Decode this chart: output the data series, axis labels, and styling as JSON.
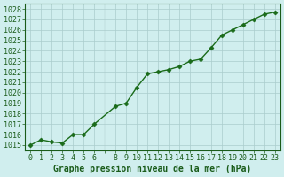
{
  "x": [
    0,
    1,
    2,
    3,
    4,
    5,
    6,
    8,
    9,
    10,
    11,
    12,
    13,
    14,
    15,
    16,
    17,
    18,
    19,
    20,
    21,
    22,
    23
  ],
  "y": [
    1015.0,
    1015.5,
    1015.3,
    1015.2,
    1016.0,
    1016.0,
    1017.0,
    1018.7,
    1019.0,
    1020.5,
    1021.8,
    1022.0,
    1022.2,
    1022.5,
    1023.0,
    1023.2,
    1024.3,
    1025.5,
    1026.0,
    1026.5,
    1027.0,
    1027.5,
    1027.7
  ],
  "ylabel_values": [
    1015,
    1016,
    1017,
    1018,
    1019,
    1020,
    1021,
    1022,
    1023,
    1024,
    1025,
    1026,
    1027,
    1028
  ],
  "xlabel_values": [
    0,
    1,
    2,
    3,
    4,
    5,
    6,
    8,
    9,
    10,
    11,
    12,
    13,
    14,
    15,
    16,
    17,
    18,
    19,
    20,
    21,
    22,
    23
  ],
  "ylim": [
    1014.5,
    1028.5
  ],
  "xlim": [
    -0.5,
    23.5
  ],
  "line_color": "#1a6b1a",
  "marker": "D",
  "marker_size": 2.5,
  "bg_color": "#d0eeee",
  "grid_color": "#aacccc",
  "xlabel": "Graphe pression niveau de la mer (hPa)",
  "xlabel_fontsize": 7,
  "tick_fontsize": 6,
  "title_color": "#1a5c1a"
}
